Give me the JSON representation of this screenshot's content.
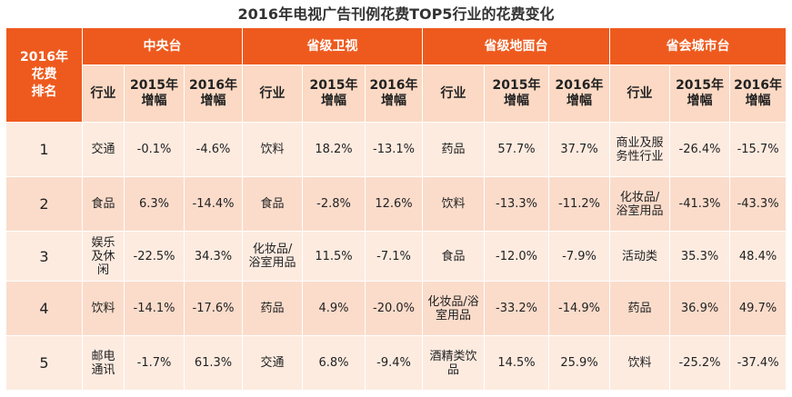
{
  "title": "2016年电视广告刊例花费TOP5行业的花费变化",
  "corner_label": "2016年\n花费\n排名",
  "groups": [
    "中央台",
    "省级卫视",
    "省级地面台",
    "省会城市台"
  ],
  "sub_headers": {
    "industry": "行业",
    "y2015": "2015年\n增幅",
    "y2016": "2016年\n增幅"
  },
  "rows": [
    {
      "rank": "1",
      "cells": [
        {
          "industry": "交通",
          "v2015": "-0.1%",
          "v2016": "-4.6%"
        },
        {
          "industry": "饮料",
          "v2015": "18.2%",
          "v2016": "-13.1%"
        },
        {
          "industry": "药品",
          "v2015": "57.7%",
          "v2016": "37.7%"
        },
        {
          "industry": "商业及服\n务性行业",
          "v2015": "-26.4%",
          "v2016": "-15.7%"
        }
      ]
    },
    {
      "rank": "2",
      "cells": [
        {
          "industry": "食品",
          "v2015": "6.3%",
          "v2016": "-14.4%"
        },
        {
          "industry": "食品",
          "v2015": "-2.8%",
          "v2016": "12.6%"
        },
        {
          "industry": "饮料",
          "v2015": "-13.3%",
          "v2016": "-11.2%"
        },
        {
          "industry": "化妆品/\n浴室用品",
          "v2015": "-41.3%",
          "v2016": "-43.3%"
        }
      ]
    },
    {
      "rank": "3",
      "cells": [
        {
          "industry": "娱乐\n及休\n闲",
          "v2015": "-22.5%",
          "v2016": "34.3%"
        },
        {
          "industry": "化妆品/\n浴室用品",
          "v2015": "11.5%",
          "v2016": "-7.1%"
        },
        {
          "industry": "食品",
          "v2015": "-12.0%",
          "v2016": "-7.9%"
        },
        {
          "industry": "活动类",
          "v2015": "35.3%",
          "v2016": "48.4%"
        }
      ]
    },
    {
      "rank": "4",
      "cells": [
        {
          "industry": "饮料",
          "v2015": "-14.1%",
          "v2016": "-17.6%"
        },
        {
          "industry": "药品",
          "v2015": "4.9%",
          "v2016": "-20.0%"
        },
        {
          "industry": "化妆品/浴\n室用品",
          "v2015": "-33.2%",
          "v2016": "-14.9%"
        },
        {
          "industry": "药品",
          "v2015": "36.9%",
          "v2016": "49.7%"
        }
      ]
    },
    {
      "rank": "5",
      "cells": [
        {
          "industry": "邮电\n通讯",
          "v2015": "-1.7%",
          "v2016": "61.3%"
        },
        {
          "industry": "交通",
          "v2015": "6.8%",
          "v2016": "-9.4%"
        },
        {
          "industry": "酒精类饮\n品",
          "v2015": "14.5%",
          "v2016": "25.9%"
        },
        {
          "industry": "饮料",
          "v2015": "-25.2%",
          "v2016": "-37.4%"
        }
      ]
    }
  ],
  "colors": {
    "header_orange": "#ee5a1e",
    "subheader_peach": "#fbd9c4",
    "row_light": "#fdebe0",
    "row_dark": "#fbdccb"
  }
}
